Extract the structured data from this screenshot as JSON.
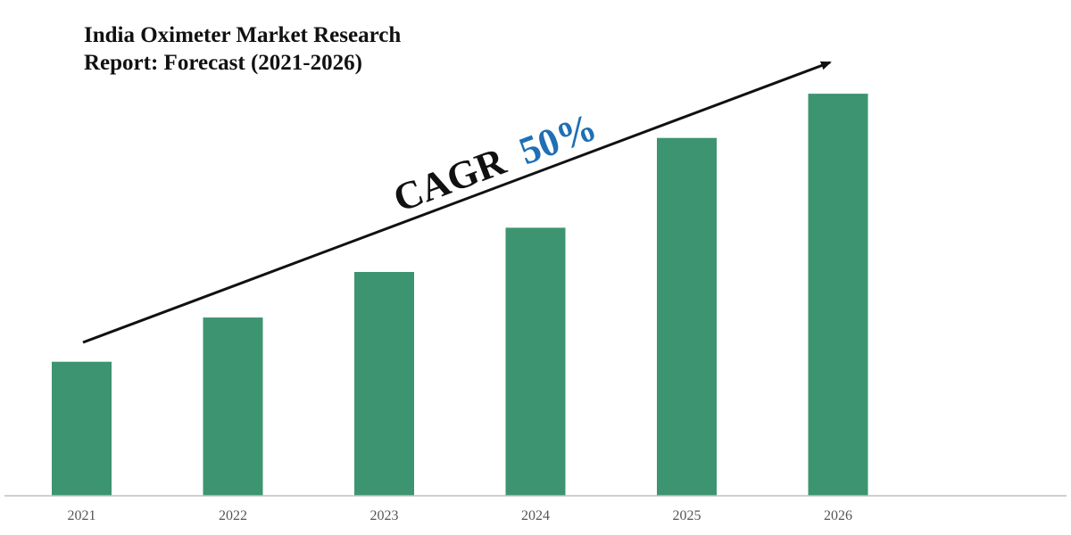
{
  "header": {
    "title_line1": "India Oximeter Market Research",
    "title_line2": "Report: Forecast (2021-2026)"
  },
  "annotation": {
    "prefix": "CAGR",
    "value": "50%",
    "prefix_color": "#111111",
    "value_color": "#1f6fb5",
    "arrow_color": "#111111"
  },
  "colors": {
    "bar": "#3d9471",
    "axis": "#bfbfbf",
    "tick": "#555555"
  },
  "chart_data": {
    "type": "bar",
    "title": "India Oximeter Market Research Report: Forecast (2021-2026)",
    "categories": [
      "2021",
      "2022",
      "2023",
      "2024",
      "2025",
      "2026"
    ],
    "values": [
      1,
      1.33,
      1.67,
      2,
      2.67,
      3
    ],
    "ylim": [
      0,
      3.3
    ],
    "xlabel": "",
    "ylabel": "",
    "y_axis_visible": false,
    "grid": false,
    "legend": "none"
  }
}
